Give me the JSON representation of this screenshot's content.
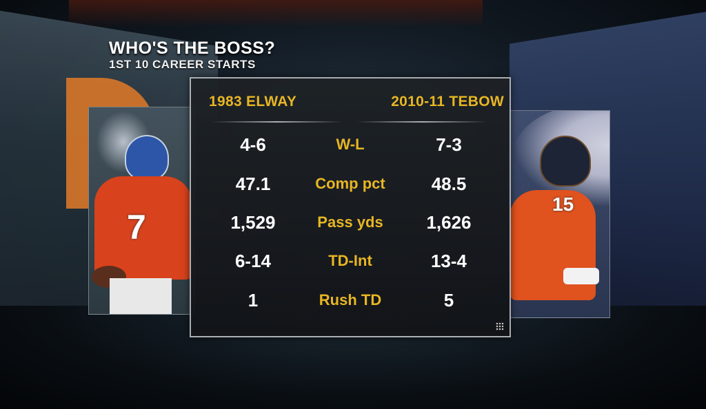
{
  "header": {
    "title": "WHO'S THE BOSS?",
    "subtitle": "1ST 10 CAREER STARTS"
  },
  "columns": {
    "left": "1983 ELWAY",
    "right": "2010-11 TEBOW"
  },
  "rows": [
    {
      "left": "4-6",
      "label": "W-L",
      "right": "7-3"
    },
    {
      "left": "47.1",
      "label": "Comp pct",
      "right": "48.5"
    },
    {
      "left": "1,529",
      "label": "Pass yds",
      "right": "1,626"
    },
    {
      "left": "6-14",
      "label": "TD-Int",
      "right": "13-4"
    },
    {
      "left": "1",
      "label": "Rush TD",
      "right": "5"
    }
  ],
  "players": {
    "left": {
      "jersey_number": "7"
    },
    "right": {
      "jersey_number": "15"
    }
  },
  "colors": {
    "accent": "#e8b623",
    "broncos_orange": "#e0521e",
    "broncos_navy": "#1e2a48"
  }
}
